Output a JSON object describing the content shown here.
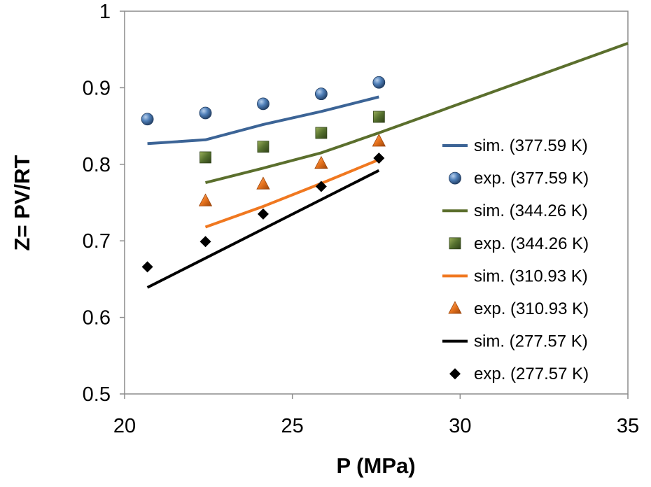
{
  "chart_data": {
    "type": "scatter",
    "title": "",
    "xlabel": "P (MPa)",
    "ylabel": "Z= PV/RT",
    "xlim": [
      20,
      35
    ],
    "ylim": [
      0.5,
      1.0
    ],
    "xticks": [
      20,
      25,
      30,
      35
    ],
    "yticks": [
      0.5,
      0.6,
      0.7,
      0.8,
      0.9,
      1.0
    ],
    "x_tick_labels": [
      "20",
      "25",
      "30",
      "35"
    ],
    "y_tick_labels": [
      "0.5",
      "0.6",
      "0.7",
      "0.8",
      "0.9",
      "1"
    ],
    "grid": false,
    "legend_position": "right",
    "series": [
      {
        "name": "sim. (377.59 K)",
        "kind": "line",
        "color": "#3c6496",
        "x": [
          20.68,
          22.41,
          24.13,
          25.86,
          27.58
        ],
        "y": [
          0.827,
          0.832,
          0.852,
          0.869,
          0.888
        ]
      },
      {
        "name": "exp. (377.59 K)",
        "kind": "marker",
        "marker": "sphere",
        "color": "#3d6a9e",
        "x": [
          20.68,
          22.41,
          24.13,
          25.86,
          27.58
        ],
        "y": [
          0.859,
          0.867,
          0.879,
          0.892,
          0.907
        ]
      },
      {
        "name": "sim. (344.26 K)",
        "kind": "line",
        "color": "#5b6f2d",
        "x": [
          22.41,
          24.13,
          25.86,
          27.58,
          35.0
        ],
        "y": [
          0.776,
          0.795,
          0.815,
          0.841,
          0.958
        ]
      },
      {
        "name": "exp. (344.26 K)",
        "kind": "marker",
        "marker": "square",
        "color": "#55702e",
        "x": [
          22.41,
          24.13,
          25.86,
          27.58
        ],
        "y": [
          0.809,
          0.823,
          0.841,
          0.862
        ]
      },
      {
        "name": "sim. (310.93 K)",
        "kind": "line",
        "color": "#f07820",
        "x": [
          22.41,
          24.13,
          25.86,
          27.58
        ],
        "y": [
          0.718,
          0.745,
          0.775,
          0.806
        ]
      },
      {
        "name": "exp. (310.93 K)",
        "kind": "marker",
        "marker": "triangle",
        "color": "#e8741e",
        "x": [
          22.41,
          24.13,
          25.86,
          27.58
        ],
        "y": [
          0.752,
          0.774,
          0.801,
          0.83
        ]
      },
      {
        "name": "sim. (277.57 K)",
        "kind": "line",
        "color": "#000000",
        "x": [
          20.68,
          27.58
        ],
        "y": [
          0.639,
          0.792
        ]
      },
      {
        "name": "exp. (277.57 K)",
        "kind": "marker",
        "marker": "diamond",
        "color": "#000000",
        "x": [
          20.68,
          22.41,
          24.13,
          25.86,
          27.58
        ],
        "y": [
          0.666,
          0.699,
          0.735,
          0.771,
          0.808
        ]
      }
    ]
  }
}
